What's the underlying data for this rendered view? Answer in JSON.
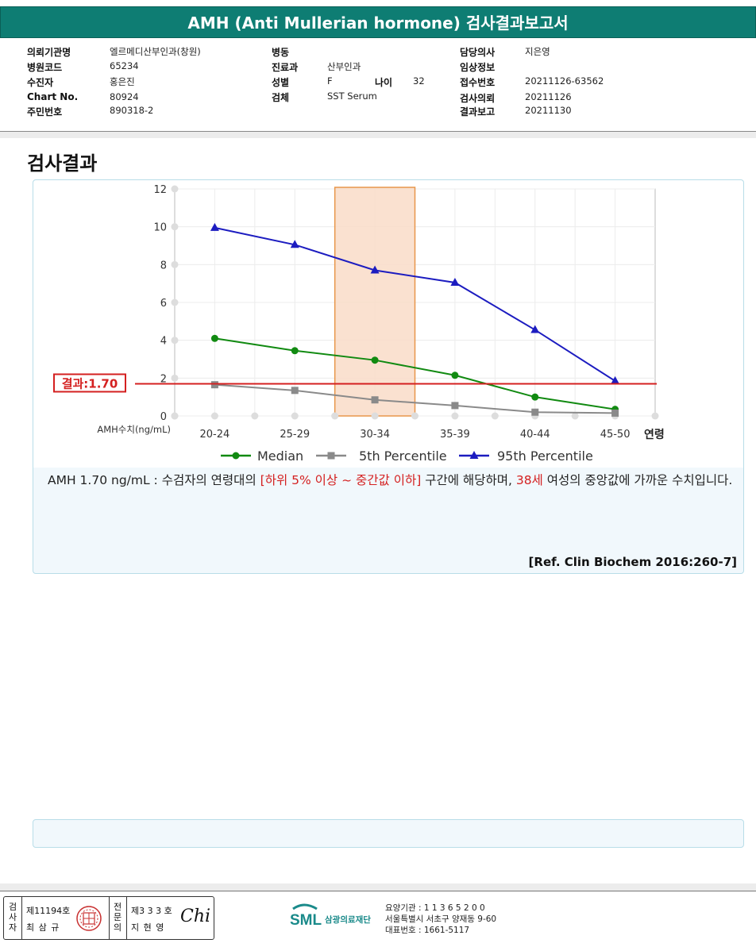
{
  "report": {
    "title": "AMH (Anti Mullerian hormone) 검사결과보고서"
  },
  "patient_info": {
    "institution_label": "의뢰기관명",
    "institution": "엘르메디산부인과(창원)",
    "hospital_code_label": "병원코드",
    "hospital_code": "65234",
    "patient_label": "수진자",
    "patient": "홍은진",
    "chart_no_label": "Chart No.",
    "chart_no": "80924",
    "resident_no_label": "주민번호",
    "resident_no": "890318-2",
    "ward_label": "병동",
    "ward": "",
    "department_label": "진료과",
    "department": "산부인과",
    "sex_label": "성별",
    "sex": "F",
    "age_label": "나이",
    "age": "32",
    "specimen_label": "검체",
    "specimen": "SST Serum",
    "doctor_label": "담당의사",
    "doctor": "지은영",
    "clinical_info_label": "임상정보",
    "clinical_info": "",
    "receipt_no_label": "접수번호",
    "receipt_no": "20211126-63562",
    "request_date_label": "검사의뢰",
    "request_date": "20211126",
    "report_date_label": "결과보고",
    "report_date": "20211130"
  },
  "section_title": "검사결과",
  "chart_data": {
    "type": "line",
    "categories": [
      "20-24",
      "25-29",
      "30-34",
      "35-39",
      "40-44",
      "45-50"
    ],
    "xlabel": "연령",
    "ylabel": "AMH수치(ng/mL)",
    "ylim": [
      0,
      12
    ],
    "yticks": [
      0,
      2,
      4,
      6,
      8,
      10,
      12
    ],
    "grid": true,
    "legend_position": "bottom",
    "series": [
      {
        "name": "Median",
        "color": "#118a11",
        "marker": "circle",
        "values": [
          4.1,
          3.45,
          2.95,
          2.15,
          1.0,
          0.35
        ]
      },
      {
        "name": "5th Percentile",
        "color": "#8a8a8a",
        "marker": "square",
        "values": [
          1.65,
          1.35,
          0.85,
          0.55,
          0.2,
          0.15
        ]
      },
      {
        "name": "95th Percentile",
        "color": "#1c1cc0",
        "marker": "triangle",
        "values": [
          9.95,
          9.05,
          7.7,
          7.05,
          4.55,
          1.85
        ]
      }
    ],
    "highlight_category": "30-34",
    "result_line": {
      "value": 1.7,
      "label": "결과:1.70",
      "color": "#d42020"
    }
  },
  "interpretation": {
    "prefix": "AMH  1.70 ng/mL : 수검자의 연령대의 ",
    "range_highlight": "[하위 5% 이상 ~ 중간값 이하]",
    "middle": "  구간에 해당하며, ",
    "age_highlight": "38세",
    "suffix": " 여성의 중앙값에 가까운 수치입니다.",
    "reference": "[Ref. Clin Biochem 2016:260-7]"
  },
  "footer": {
    "tester_vertical": [
      "검",
      "사",
      "자"
    ],
    "tester_no": "제11194호",
    "tester_name": "최 삼 규",
    "specialist_vertical": [
      "전",
      "문",
      "의"
    ],
    "specialist_no": "제3 3 3 호",
    "specialist_name": "지 현 영",
    "signature": "Chi",
    "org_logo": "SML",
    "org_name": "삼광의료재단",
    "care_institution": "요양기관 : 1 1 3 6 5 2 0 0",
    "address": "서울특별시 서초구 양재동 9-60",
    "phone": "대표번호 : 1661-5117"
  }
}
